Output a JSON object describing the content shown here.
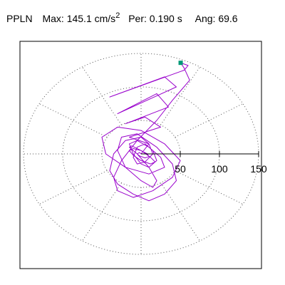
{
  "header": {
    "station": "PPLN",
    "max_label": "Max:",
    "max_value": "145.1 cm/s",
    "max_exp": "2",
    "per_label": "Per:",
    "per_value": "0.190 s",
    "ang_label": "Ang:",
    "ang_value": "69.6"
  },
  "colors": {
    "trace": "#9900cc",
    "marker": "#009977",
    "grid": "#555555",
    "frame": "#000000"
  },
  "chart_data": {
    "type": "line",
    "title": "",
    "xlabel": "",
    "ylabel": "",
    "max_amplitude_cm_s2": 145.1,
    "period_s": 0.19,
    "angle_deg": 69.6,
    "rings": [
      50,
      100,
      150
    ],
    "tick_labels": [
      "50",
      "100",
      "150"
    ],
    "xlim": [
      -150,
      150
    ],
    "ylim": [
      -150,
      150
    ],
    "grid": true,
    "spoke_interval_deg": 30,
    "peak_marker": {
      "x": 50.5,
      "y": 136.0
    },
    "series": [
      {
        "x": [
          0,
          10,
          -15,
          25,
          5,
          -20,
          35,
          20,
          -30,
          45,
          30,
          -40,
          55,
          60,
          50.5,
          55,
          62,
          40,
          20,
          -5,
          -25,
          -35,
          -30,
          -10,
          15,
          40,
          50,
          30,
          0,
          -30,
          -50,
          -45,
          -20,
          10,
          30,
          25,
          10,
          -5,
          -15,
          -10,
          0,
          10,
          20,
          15,
          5,
          -5,
          -10,
          -5,
          5,
          15,
          10,
          0,
          -20,
          -35,
          -40,
          -30,
          -10,
          10,
          30,
          45,
          40,
          20,
          -5,
          -25,
          -30,
          -20,
          0,
          15,
          20,
          10,
          -5,
          -15,
          -12,
          0,
          12,
          18,
          12,
          0,
          -10,
          -15,
          -10,
          0,
          8,
          10,
          5,
          -2,
          -5,
          -2,
          0
        ],
        "y": [
          0,
          15,
          25,
          40,
          55,
          45,
          70,
          90,
          60,
          100,
          115,
          85,
          125,
          132,
          136,
          128,
          110,
          80,
          50,
          20,
          -10,
          -35,
          -55,
          -65,
          -55,
          -35,
          -10,
          15,
          35,
          40,
          25,
          0,
          -20,
          -30,
          -20,
          -5,
          10,
          20,
          15,
          0,
          -15,
          -20,
          -10,
          5,
          15,
          10,
          -5,
          -15,
          -12,
          0,
          15,
          25,
          20,
          0,
          -25,
          -45,
          -60,
          -70,
          -60,
          -40,
          -15,
          10,
          30,
          25,
          5,
          -20,
          -40,
          -50,
          -40,
          -20,
          0,
          10,
          12,
          5,
          -5,
          -12,
          -15,
          -10,
          -2,
          5,
          8,
          5,
          0,
          -4,
          -6,
          -3,
          0,
          2,
          0
        ]
      }
    ]
  }
}
